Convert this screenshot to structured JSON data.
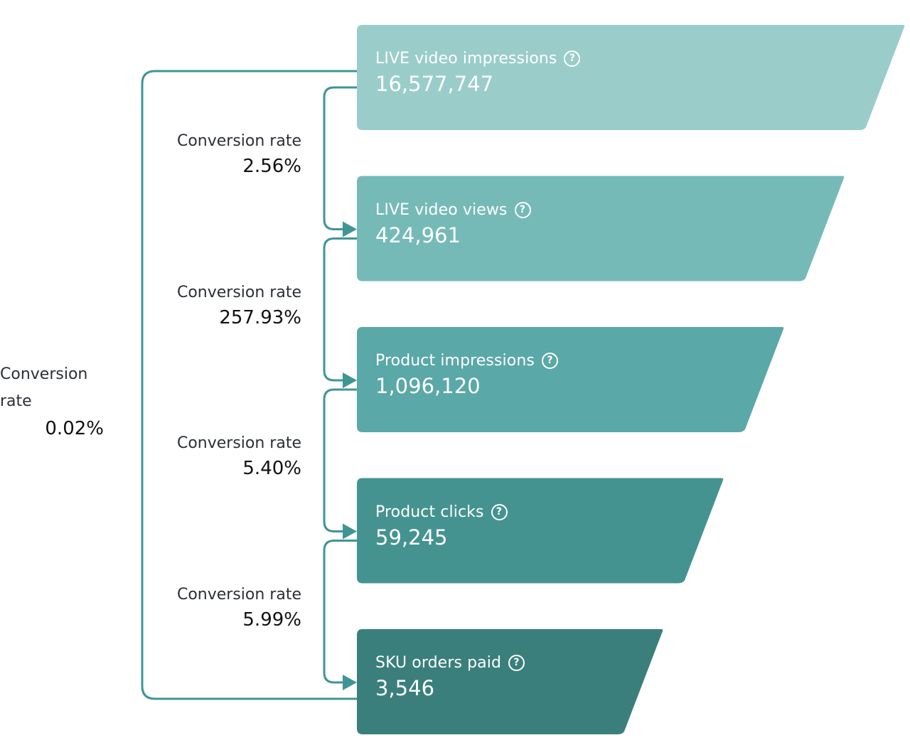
{
  "chart_data": {
    "type": "funnel",
    "stages": [
      {
        "label": "LIVE video impressions",
        "value": 16577747,
        "display_value": "16,577,747",
        "color": "#9acdc9",
        "help_icon": "question-circle-icon"
      },
      {
        "label": "LIVE video views",
        "value": 424961,
        "display_value": "424,961",
        "color": "#76bab7",
        "help_icon": "question-circle-icon"
      },
      {
        "label": "Product impressions",
        "value": 1096120,
        "display_value": "1,096,120",
        "color": "#5aa8a7",
        "help_icon": "question-circle-icon"
      },
      {
        "label": "Product clicks",
        "value": 59245,
        "display_value": "59,245",
        "color": "#459391",
        "help_icon": "question-circle-icon"
      },
      {
        "label": "SKU orders paid",
        "value": 3546,
        "display_value": "3,546",
        "color": "#3a7f7b",
        "help_icon": "question-circle-icon"
      }
    ],
    "step_conversions": [
      {
        "label": "Conversion rate",
        "value": "2.56%"
      },
      {
        "label": "Conversion rate",
        "value": "257.93%"
      },
      {
        "label": "Conversion rate",
        "value": "5.40%"
      },
      {
        "label": "Conversion rate",
        "value": "5.99%"
      }
    ],
    "overall_conversion": {
      "label_line1": "Conversion",
      "label_line2": "rate",
      "value": "0.02%"
    },
    "connector_color": "#3f9593",
    "help_icon_glyph": "?"
  }
}
